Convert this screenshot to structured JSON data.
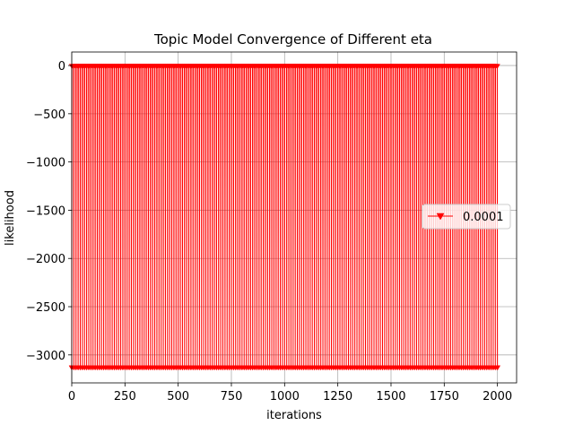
{
  "chart_data": {
    "type": "line",
    "title": "Topic Model Convergence of Different eta",
    "xlabel": "iterations",
    "ylabel": "likelihood",
    "xlim": [
      0,
      2090
    ],
    "ylim": [
      -3290,
      140
    ],
    "xticks": [
      0,
      250,
      500,
      750,
      1000,
      1250,
      1500,
      1750,
      2000
    ],
    "xtick_labels": [
      "0",
      "250",
      "500",
      "750",
      "1000",
      "1250",
      "1500",
      "1750",
      "2000"
    ],
    "yticks": [
      0,
      -500,
      -1000,
      -1500,
      -2000,
      -2500,
      -3000
    ],
    "ytick_labels": [
      "0",
      "−500",
      "−1000",
      "−1500",
      "−2000",
      "−2500",
      "−3000"
    ],
    "grid": true,
    "legend_position": "center-right",
    "series": [
      {
        "name": "0.0001",
        "color": "#ff0000",
        "marker": "tri_down",
        "x_range": [
          0,
          2000
        ],
        "pattern": "oscillating: each cycle rises from about -3130 to about -5 and falls back; cycle length about 10 iterations",
        "cycle_length": 10,
        "high": -5,
        "low": -3130
      }
    ]
  }
}
